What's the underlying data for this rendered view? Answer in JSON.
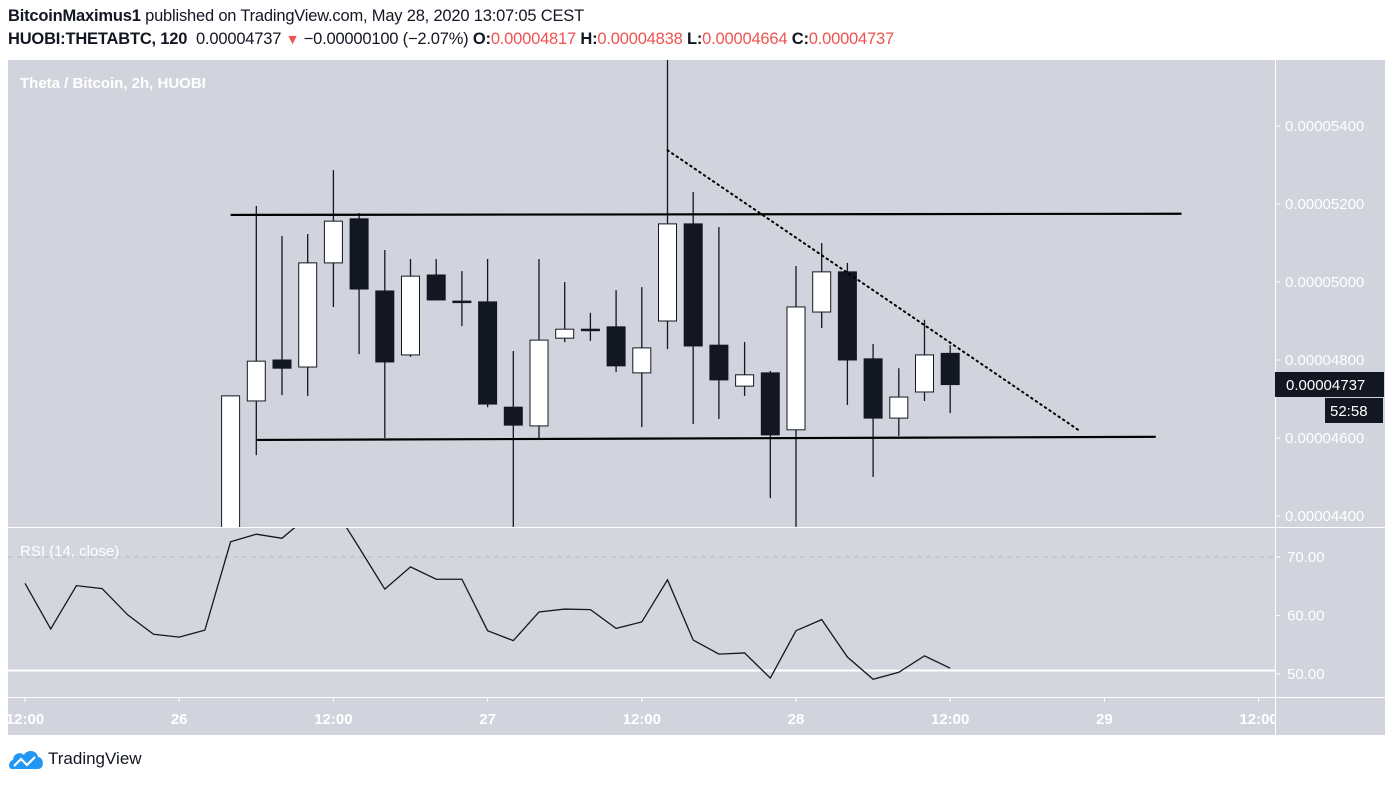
{
  "header": {
    "author": "BitcoinMaximus1",
    "published_text": "published on TradingView.com, May 28, 2020 13:07:05 CEST",
    "symbol": "HUOBI:THETABTC, 120",
    "last": "0.00004737",
    "change": "−0.00000100 (−2.07%)",
    "o_label": "O:",
    "o": "0.00004817",
    "h_label": "H:",
    "h": "0.00004838",
    "l_label": "L:",
    "l": "0.00004664",
    "c_label": "C:",
    "c": "0.00004737",
    "direction_icon": "down-triangle-icon"
  },
  "pane_title": "Theta / Bitcoin, 2h, HUOBI",
  "rsi_title": "RSI (14, close)",
  "price_label": "0.00004737",
  "countdown": "52:58",
  "footer": {
    "brand": "TradingView",
    "logo_icon": "tradingview-cloud-icon"
  },
  "colors": {
    "background": "#d1d4dc",
    "down_candle": "#131722",
    "up_candle": "#ffffff",
    "change_down": "#ef5350",
    "logo": "#2196f3"
  },
  "chart_data": [
    {
      "type": "candlestick",
      "title": "Theta / Bitcoin, 2h, HUOBI",
      "ylim": [
        4.372e-05,
        5.569e-05
      ],
      "y_ticks": [
        "0.00005400",
        "0.00005200",
        "0.00005000",
        "0.00004800",
        "0.00004600",
        "0.00004400"
      ],
      "y_tick_values": [
        5.4e-05,
        5.2e-05,
        5e-05,
        4.8e-05,
        4.6e-05,
        4.4e-05
      ],
      "x_ticks": [
        {
          "label": "12:00",
          "t": "2020-05-25 12:00"
        },
        {
          "label": "26",
          "t": "2020-05-26 00:00"
        },
        {
          "label": "12:00",
          "t": "2020-05-26 12:00"
        },
        {
          "label": "27",
          "t": "2020-05-27 00:00"
        },
        {
          "label": "12:00",
          "t": "2020-05-27 12:00"
        },
        {
          "label": "28",
          "t": "2020-05-28 00:00"
        },
        {
          "label": "12:00",
          "t": "2020-05-28 12:00"
        },
        {
          "label": "29",
          "t": "2020-05-29 00:00"
        },
        {
          "label": "12:00",
          "t": "2020-05-29 12:00"
        }
      ],
      "candles_ohlc": [
        [
          "2020-05-26 04:00",
          4.3e-05,
          4.708e-05,
          4.25e-05,
          4.708e-05
        ],
        [
          "2020-05-26 06:00",
          4.695e-05,
          5.195e-05,
          4.556e-05,
          4.797e-05
        ],
        [
          "2020-05-26 08:00",
          4.8e-05,
          5.118e-05,
          4.71e-05,
          4.779e-05
        ],
        [
          "2020-05-26 10:00",
          4.782e-05,
          5.123e-05,
          4.708e-05,
          5.049e-05
        ],
        [
          "2020-05-26 12:00",
          5.049e-05,
          5.287e-05,
          4.936e-05,
          5.156e-05
        ],
        [
          "2020-05-26 14:00",
          5.162e-05,
          5.177e-05,
          4.815e-05,
          4.982e-05
        ],
        [
          "2020-05-26 16:00",
          4.977e-05,
          5.082e-05,
          4.6e-05,
          4.795e-05
        ],
        [
          "2020-05-26 18:00",
          4.813e-05,
          5.059e-05,
          4.808e-05,
          5.015e-05
        ],
        [
          "2020-05-26 20:00",
          5.018e-05,
          5.059e-05,
          4.954e-05,
          4.954e-05
        ],
        [
          "2020-05-26 22:00",
          4.951e-05,
          5.028e-05,
          4.887e-05,
          4.949e-05
        ],
        [
          "2020-05-27 00:00",
          4.949e-05,
          5.059e-05,
          4.679e-05,
          4.687e-05
        ],
        [
          "2020-05-27 02:00",
          4.679e-05,
          4.823e-05,
          4.372e-05,
          4.633e-05
        ],
        [
          "2020-05-27 04:00",
          4.631e-05,
          5.059e-05,
          4.597e-05,
          4.851e-05
        ],
        [
          "2020-05-27 06:00",
          4.856e-05,
          5e-05,
          4.846e-05,
          4.879e-05
        ],
        [
          "2020-05-27 08:00",
          4.879e-05,
          4.921e-05,
          4.849e-05,
          4.877e-05
        ],
        [
          "2020-05-27 10:00",
          4.885e-05,
          4.979e-05,
          4.769e-05,
          4.785e-05
        ],
        [
          "2020-05-27 12:00",
          4.767e-05,
          4.987e-05,
          4.628e-05,
          4.831e-05
        ],
        [
          "2020-05-27 14:00",
          4.9e-05,
          5.569e-05,
          4.828e-05,
          5.149e-05
        ],
        [
          "2020-05-27 16:00",
          5.149e-05,
          5.231e-05,
          4.636e-05,
          4.836e-05
        ],
        [
          "2020-05-27 18:00",
          4.838e-05,
          5.141e-05,
          4.649e-05,
          4.749e-05
        ],
        [
          "2020-05-27 20:00",
          4.733e-05,
          4.846e-05,
          4.708e-05,
          4.762e-05
        ],
        [
          "2020-05-27 22:00",
          4.767e-05,
          4.772e-05,
          4.446e-05,
          4.608e-05
        ],
        [
          "2020-05-28 00:00",
          4.621e-05,
          5.041e-05,
          4.372e-05,
          4.936e-05
        ],
        [
          "2020-05-28 02:00",
          4.923e-05,
          5.1e-05,
          4.882e-05,
          5.026e-05
        ],
        [
          "2020-05-28 04:00",
          5.026e-05,
          5.049e-05,
          4.685e-05,
          4.8e-05
        ],
        [
          "2020-05-28 06:00",
          4.803e-05,
          4.841e-05,
          4.5e-05,
          4.651e-05
        ],
        [
          "2020-05-28 08:00",
          4.651e-05,
          4.779e-05,
          4.605e-05,
          4.705e-05
        ],
        [
          "2020-05-28 10:00",
          4.718e-05,
          4.903e-05,
          4.695e-05,
          4.813e-05
        ],
        [
          "2020-05-28 12:00",
          4.817e-05,
          4.838e-05,
          4.664e-05,
          4.737e-05
        ]
      ],
      "trendlines": [
        {
          "style": "solid",
          "from": [
            "2020-05-26 04:00",
            5.172e-05
          ],
          "to": [
            "2020-05-29 06:00",
            5.175e-05
          ]
        },
        {
          "style": "solid",
          "from": [
            "2020-05-26 06:00",
            4.595e-05
          ],
          "to": [
            "2020-05-29 04:00",
            4.603e-05
          ]
        },
        {
          "style": "dotted",
          "from": [
            "2020-05-27 14:00",
            5.338e-05
          ],
          "to": [
            "2020-05-28 22:00",
            4.62e-05
          ]
        }
      ],
      "grid": false
    },
    {
      "type": "line",
      "title": "RSI (14, close)",
      "ylim": [
        46.1,
        75.1
      ],
      "y_ticks": [
        "70.00",
        "60.00",
        "50.00"
      ],
      "y_tick_values": [
        70,
        60,
        50
      ],
      "dashed_level": 70,
      "solid_level": 50.6,
      "points": [
        [
          "2020-05-25 12:00",
          65.5
        ],
        [
          "2020-05-25 14:00",
          57.7
        ],
        [
          "2020-05-25 16:00",
          65.1
        ],
        [
          "2020-05-25 18:00",
          64.6
        ],
        [
          "2020-05-25 20:00",
          60.1
        ],
        [
          "2020-05-25 22:00",
          56.8
        ],
        [
          "2020-05-26 00:00",
          56.3
        ],
        [
          "2020-05-26 02:00",
          57.5
        ],
        [
          "2020-05-26 04:00",
          72.6
        ],
        [
          "2020-05-26 06:00",
          73.9
        ],
        [
          "2020-05-26 08:00",
          73.2
        ],
        [
          "2020-05-26 10:00",
          76.9
        ],
        [
          "2020-05-26 12:00",
          78.6
        ],
        [
          "2020-05-26 14:00",
          71.6
        ],
        [
          "2020-05-26 16:00",
          64.5
        ],
        [
          "2020-05-26 18:00",
          68.3
        ],
        [
          "2020-05-26 20:00",
          66.2
        ],
        [
          "2020-05-26 22:00",
          66.2
        ],
        [
          "2020-05-27 00:00",
          57.4
        ],
        [
          "2020-05-27 02:00",
          55.7
        ],
        [
          "2020-05-27 04:00",
          60.6
        ],
        [
          "2020-05-27 06:00",
          61.1
        ],
        [
          "2020-05-27 08:00",
          61.0
        ],
        [
          "2020-05-27 10:00",
          57.8
        ],
        [
          "2020-05-27 12:00",
          58.9
        ],
        [
          "2020-05-27 14:00",
          66.1
        ],
        [
          "2020-05-27 16:00",
          55.8
        ],
        [
          "2020-05-27 18:00",
          53.4
        ],
        [
          "2020-05-27 20:00",
          53.6
        ],
        [
          "2020-05-27 22:00",
          49.3
        ],
        [
          "2020-05-28 00:00",
          57.4
        ],
        [
          "2020-05-28 02:00",
          59.3
        ],
        [
          "2020-05-28 04:00",
          52.9
        ],
        [
          "2020-05-28 06:00",
          49.1
        ],
        [
          "2020-05-28 08:00",
          50.3
        ],
        [
          "2020-05-28 10:00",
          53.1
        ],
        [
          "2020-05-28 12:00",
          51.0
        ]
      ]
    }
  ]
}
